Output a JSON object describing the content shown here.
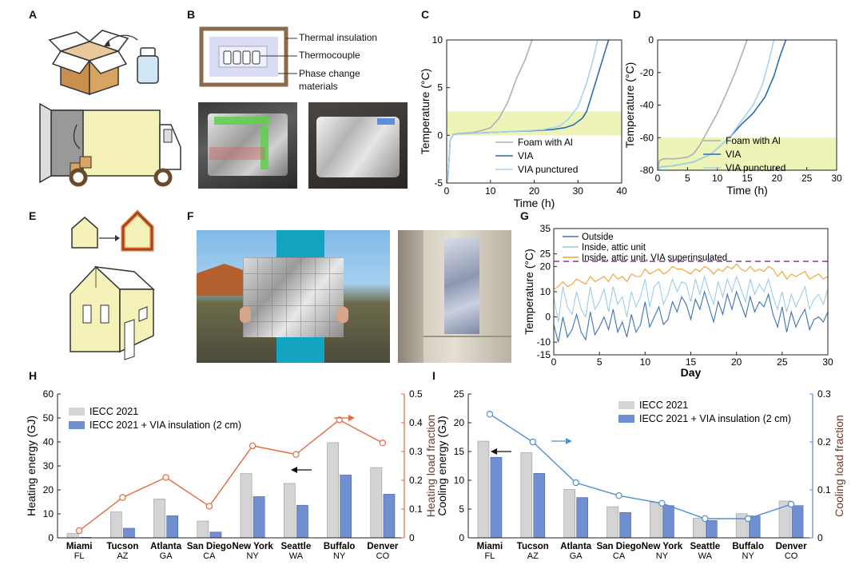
{
  "panel_labels": {
    "A": "A",
    "B": "B",
    "C": "C",
    "D": "D",
    "E": "E",
    "F": "F",
    "G": "G",
    "H": "H",
    "I": "I"
  },
  "panel_b": {
    "labels": [
      "Thermal insulation",
      "Thermocouple",
      "Phase change",
      "materials"
    ]
  },
  "colors": {
    "gray": "#b0b0b0",
    "via_dark": "#2b6cb0",
    "via_light": "#a9d3ec",
    "band": "#eef3b8",
    "orange": "#f0a030",
    "purple": "#9b3fb0",
    "heat_line": "#e26a3d",
    "cool_line": "#4f8fd0",
    "bar_gray": "#d4d4d4",
    "bar_blue": "#6f8fd0"
  },
  "chart_data": [
    {
      "id": "C",
      "type": "line",
      "xlabel": "Time (h)",
      "ylabel": "Temperature (°C)",
      "xlim": [
        0,
        40
      ],
      "ylim": [
        -5,
        10
      ],
      "xticks": [
        "0",
        "10",
        "20",
        "30",
        "40"
      ],
      "yticks": [
        "-5",
        "0",
        "5",
        "10"
      ],
      "band": [
        0,
        2.5
      ],
      "series": [
        {
          "name": "Foam with Al",
          "points": [
            [
              0,
              -5
            ],
            [
              0.3,
              -4.5
            ],
            [
              0.8,
              -0.5
            ],
            [
              1.5,
              0.1
            ],
            [
              3,
              0.2
            ],
            [
              6,
              0.3
            ],
            [
              8,
              0.5
            ],
            [
              10,
              0.8
            ],
            [
              12,
              1.8
            ],
            [
              14,
              3.5
            ],
            [
              16,
              6
            ],
            [
              18,
              8
            ],
            [
              19.5,
              10
            ]
          ]
        },
        {
          "name": "VIA",
          "points": [
            [
              0,
              -5
            ],
            [
              0.3,
              -4.5
            ],
            [
              0.8,
              -0.5
            ],
            [
              1.5,
              0.1
            ],
            [
              5,
              0.2
            ],
            [
              15,
              0.4
            ],
            [
              20,
              0.5
            ],
            [
              24,
              0.6
            ],
            [
              27,
              0.8
            ],
            [
              29,
              1.1
            ],
            [
              31,
              1.8
            ],
            [
              32,
              2.5
            ],
            [
              33,
              4
            ],
            [
              35,
              7
            ],
            [
              37,
              10
            ]
          ]
        },
        {
          "name": "VIA punctured",
          "points": [
            [
              0,
              -5
            ],
            [
              0.3,
              -4.5
            ],
            [
              0.8,
              -0.5
            ],
            [
              1.5,
              0.1
            ],
            [
              5,
              0.2
            ],
            [
              15,
              0.4
            ],
            [
              22,
              0.6
            ],
            [
              26,
              1
            ],
            [
              28,
              1.8
            ],
            [
              30,
              3
            ],
            [
              32,
              5.5
            ],
            [
              33.5,
              8
            ],
            [
              34.5,
              10
            ]
          ]
        }
      ],
      "legend": [
        "Foam with Al",
        "VIA",
        "VIA punctured"
      ]
    },
    {
      "id": "D",
      "type": "line",
      "xlabel": "Time (h)",
      "ylabel": "Temperature (°C)",
      "xlim": [
        0,
        30
      ],
      "ylim": [
        -80,
        0
      ],
      "xticks": [
        "0",
        "5",
        "10",
        "15",
        "20",
        "25",
        "30"
      ],
      "yticks": [
        "-80",
        "-60",
        "-40",
        "-20",
        "0"
      ],
      "band": [
        -80,
        -60
      ],
      "series": [
        {
          "name": "Foam with Al",
          "points": [
            [
              0,
              -80
            ],
            [
              0.3,
              -74
            ],
            [
              1,
              -73
            ],
            [
              3,
              -73
            ],
            [
              5,
              -72
            ],
            [
              6,
              -70
            ],
            [
              7,
              -65
            ],
            [
              8.5,
              -55
            ],
            [
              10,
              -45
            ],
            [
              11.5,
              -33
            ],
            [
              13,
              -20
            ],
            [
              14,
              -10
            ],
            [
              15,
              0
            ]
          ]
        },
        {
          "name": "VIA",
          "points": [
            [
              0,
              -80
            ],
            [
              0.5,
              -78
            ],
            [
              3,
              -77
            ],
            [
              6,
              -75
            ],
            [
              9,
              -70
            ],
            [
              12,
              -60
            ],
            [
              14,
              -52
            ],
            [
              16,
              -45
            ],
            [
              18,
              -35
            ],
            [
              19.5,
              -22
            ],
            [
              20.5,
              -10
            ],
            [
              21.5,
              0
            ]
          ]
        },
        {
          "name": "VIA punctured",
          "points": [
            [
              0,
              -80
            ],
            [
              0.5,
              -78
            ],
            [
              3,
              -77
            ],
            [
              6,
              -75
            ],
            [
              9,
              -70
            ],
            [
              12,
              -60
            ],
            [
              14,
              -50
            ],
            [
              16,
              -40
            ],
            [
              17.5,
              -28
            ],
            [
              18.5,
              -15
            ],
            [
              19.5,
              0
            ]
          ]
        }
      ],
      "legend": [
        "Foam with Al",
        "VIA",
        "VIA punctured"
      ]
    },
    {
      "id": "G",
      "type": "line",
      "xlabel": "Day",
      "ylabel": "Temperature (°C)",
      "xlim": [
        0,
        30
      ],
      "ylim": [
        -15,
        35
      ],
      "xticks": [
        "0",
        "5",
        "10",
        "15",
        "20",
        "25",
        "30"
      ],
      "yticks": [
        "-15",
        "-10",
        "0",
        "10",
        "20",
        "25",
        "35"
      ],
      "ytick_values": [
        -15,
        -10,
        0,
        10,
        20,
        25,
        35
      ],
      "dashed_y": 22,
      "legend": [
        "Outside",
        "Inside, attic unit",
        "Inside, attic unit, VIA superinsulated"
      ],
      "series": [
        {
          "name": "Outside",
          "values": [
            -3,
            -10,
            0,
            -8,
            -5,
            1,
            -6,
            -9,
            2,
            -7,
            -4,
            0,
            -5,
            3,
            -6,
            -2,
            -8,
            1,
            -6,
            -3,
            6,
            -4,
            0,
            4,
            -3,
            -1,
            6,
            2,
            8,
            5,
            -1,
            7,
            3,
            10,
            4,
            -2,
            6,
            1,
            9,
            3,
            10,
            5,
            0,
            8,
            2,
            6,
            4,
            9,
            1,
            -4,
            4,
            -6,
            2,
            -4,
            0,
            3,
            -5,
            -1,
            0,
            -2,
            2
          ]
        },
        {
          "name": "Inside, attic unit",
          "values": [
            8,
            -2,
            12,
            4,
            1,
            10,
            3,
            0,
            12,
            3,
            6,
            11,
            2,
            12,
            5,
            8,
            0,
            10,
            4,
            8,
            15,
            4,
            12,
            14,
            5,
            9,
            15,
            10,
            14,
            13,
            6,
            15,
            9,
            16,
            10,
            5,
            14,
            8,
            15,
            10,
            16,
            11,
            6,
            15,
            9,
            13,
            10,
            15,
            8,
            3,
            10,
            2,
            9,
            4,
            8,
            12,
            3,
            7,
            9,
            5,
            11
          ]
        },
        {
          "name": "Inside, attic unit, VIA superinsulated",
          "values": [
            11,
            12,
            14,
            12,
            13,
            15,
            14,
            13,
            16,
            14,
            15,
            16,
            14,
            17,
            15,
            16,
            14,
            17,
            16,
            16,
            19,
            17,
            18,
            19,
            17,
            18,
            20,
            19,
            19,
            18,
            17,
            19,
            18,
            20,
            19,
            17,
            19,
            18,
            20,
            19,
            21,
            19,
            18,
            20,
            18,
            19,
            18,
            20,
            19,
            16,
            18,
            15,
            17,
            16,
            17,
            18,
            15,
            16,
            17,
            15,
            16
          ]
        }
      ]
    },
    {
      "id": "H",
      "type": "bar",
      "ylabel": "Heating energy (GJ)",
      "y2label": "Heating load fraction",
      "ylim": [
        0,
        60
      ],
      "y2lim": [
        0,
        0.5
      ],
      "yticks": [
        "0",
        "10",
        "20",
        "30",
        "40",
        "50",
        "60"
      ],
      "y2ticks": [
        "0",
        "0.1",
        "0.2",
        "0.3",
        "0.4",
        "0.5"
      ],
      "categories": [
        [
          "Miami",
          "FL"
        ],
        [
          "Tucson",
          "AZ"
        ],
        [
          "Atlanta",
          "GA"
        ],
        [
          "San Diego",
          "CA"
        ],
        [
          "New York",
          "NY"
        ],
        [
          "Seattle",
          "WA"
        ],
        [
          "Buffalo",
          "NY"
        ],
        [
          "Denver",
          "CO"
        ]
      ],
      "series": [
        {
          "name": "IECC 2021",
          "values": [
            1.8,
            10.8,
            16.2,
            7.0,
            26.8,
            22.7,
            39.7,
            29.3
          ]
        },
        {
          "name": "IECC 2021 + VIA insulation (2 cm)",
          "values": [
            0.2,
            4.0,
            9.2,
            2.4,
            17.2,
            13.6,
            26.2,
            18.2
          ]
        }
      ],
      "line": {
        "name": "Heating load fraction",
        "values": [
          0.025,
          0.14,
          0.21,
          0.11,
          0.32,
          0.29,
          0.41,
          0.33
        ]
      },
      "legend": [
        "IECC 2021",
        "IECC 2021 + VIA insulation (2 cm)"
      ]
    },
    {
      "id": "I",
      "type": "bar",
      "ylabel": "Cooling energy (GJ)",
      "y2label": "Cooling load fraction",
      "ylim": [
        0,
        25
      ],
      "y2lim": [
        0,
        0.3
      ],
      "yticks": [
        "0",
        "5",
        "10",
        "15",
        "20",
        "25"
      ],
      "y2ticks": [
        "0",
        "0.1",
        "0.2",
        "0.3"
      ],
      "categories": [
        [
          "Miami",
          "FL"
        ],
        [
          "Tucson",
          "AZ"
        ],
        [
          "Atlanta",
          "GA"
        ],
        [
          "San Diego",
          "CA"
        ],
        [
          "New York",
          "NY"
        ],
        [
          "Seattle",
          "WA"
        ],
        [
          "Buffalo",
          "NY"
        ],
        [
          "Denver",
          "CO"
        ]
      ],
      "series": [
        {
          "name": "IECC 2021",
          "values": [
            16.8,
            14.8,
            8.4,
            5.4,
            6.2,
            3.4,
            4.2,
            6.4
          ]
        },
        {
          "name": "IECC 2021 + VIA insulation (2 cm)",
          "values": [
            14.0,
            11.2,
            7.0,
            4.4,
            5.6,
            3.0,
            3.8,
            5.6
          ]
        }
      ],
      "line": {
        "name": "Cooling load fraction",
        "values": [
          0.258,
          0.2,
          0.115,
          0.088,
          0.072,
          0.04,
          0.04,
          0.07
        ]
      },
      "legend": [
        "IECC 2021",
        "IECC 2021 + VIA insulation (2 cm)"
      ]
    }
  ]
}
